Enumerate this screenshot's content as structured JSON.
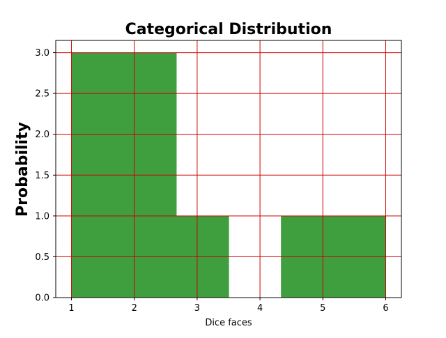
{
  "chart_data": {
    "type": "histogram",
    "title": "Categorical Distribution",
    "xlabel": "Dice faces",
    "ylabel": "Probability",
    "xlim": [
      0.75,
      6.25
    ],
    "ylim": [
      0,
      3.15
    ],
    "xticks": [
      "1",
      "2",
      "3",
      "4",
      "5",
      "6"
    ],
    "yticks": [
      "0.0",
      "0.5",
      "1.0",
      "1.5",
      "2.0",
      "2.5",
      "3.0"
    ],
    "bins": [
      {
        "x0": 1.0,
        "x1": 1.8333,
        "value": 3
      },
      {
        "x0": 1.8333,
        "x1": 2.6667,
        "value": 3
      },
      {
        "x0": 2.6667,
        "x1": 3.5,
        "value": 1
      },
      {
        "x0": 3.5,
        "x1": 4.3333,
        "value": 0
      },
      {
        "x0": 4.3333,
        "x1": 5.1667,
        "value": 1
      },
      {
        "x0": 5.1667,
        "x1": 6.0,
        "value": 1
      }
    ],
    "bar_color": "#3f9f3f",
    "grid": true,
    "grid_color": "#cc0000"
  }
}
